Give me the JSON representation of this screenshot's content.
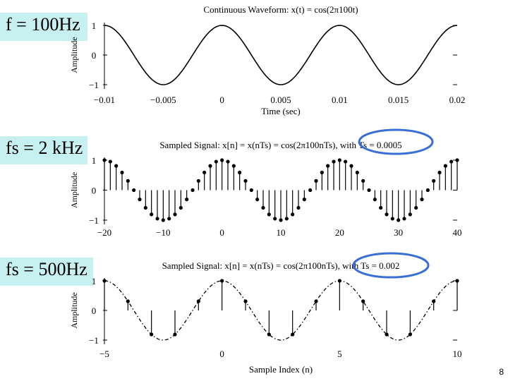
{
  "slide": {
    "page_number": "8",
    "labels": [
      "f = 100Hz",
      "fs = 2 kHz",
      "fs = 500Hz"
    ]
  },
  "chart_data": [
    {
      "type": "line",
      "title": "Continuous Waveform: x(t) = cos(2π100t)",
      "xlabel": "Time (sec)",
      "ylabel": "Amplitude",
      "xlim": [
        -0.01,
        0.02
      ],
      "ylim": [
        -1,
        1
      ],
      "xticks": [
        "−0.01",
        "−0.005",
        "0",
        "0.005",
        "0.01",
        "0.015",
        "0.02"
      ],
      "yticks": [
        "−1",
        "0",
        "1"
      ],
      "frequency_hz": 100
    },
    {
      "type": "stem",
      "title": "Sampled Signal: x[n] = x(nTs) = cos(2π100nTs), with Ts = 0.0005",
      "xlabel": "",
      "ylabel": "Amplitude",
      "xlim": [
        -20,
        40
      ],
      "ylim": [
        -1,
        1
      ],
      "xticks": [
        "−20",
        "−10",
        "0",
        "10",
        "20",
        "30",
        "40"
      ],
      "yticks": [
        "−1",
        "0",
        "1"
      ],
      "n_range": [
        -20,
        40
      ],
      "Ts": 0.0005,
      "frequency_hz": 100
    },
    {
      "type": "stem",
      "title": "Sampled Signal: x[n] = x(nTs) = cos(2π100nTs), with Ts = 0.002",
      "xlabel": "Sample Index (n)",
      "ylabel": "Amplitude",
      "xlim": [
        -5,
        10
      ],
      "ylim": [
        -1,
        1
      ],
      "xticks": [
        "−5",
        "0",
        "5",
        "10"
      ],
      "yticks": [
        "−1",
        "0",
        "1"
      ],
      "n_range": [
        -5,
        10
      ],
      "Ts": 0.002,
      "frequency_hz": 100,
      "envelope": "dash-dot"
    }
  ],
  "colors": {
    "label_bg": "#c7f0f0",
    "highlight_circle": "#3a6fd8",
    "line": "#000000"
  }
}
